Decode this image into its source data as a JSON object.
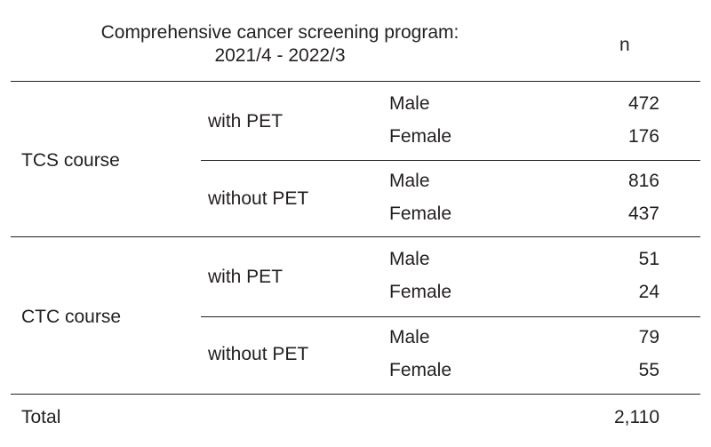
{
  "table": {
    "header": {
      "title_line1": "Comprehensive cancer screening program:",
      "title_line2": "2021/4 - 2022/3",
      "n_label": "n"
    },
    "courses": [
      {
        "name": "TCS course",
        "groups": [
          {
            "name": "with PET",
            "rows": [
              {
                "sex": "Male",
                "n": "472"
              },
              {
                "sex": "Female",
                "n": "176"
              }
            ]
          },
          {
            "name": "without PET",
            "rows": [
              {
                "sex": "Male",
                "n": "816"
              },
              {
                "sex": "Female",
                "n": "437"
              }
            ]
          }
        ]
      },
      {
        "name": "CTC course",
        "groups": [
          {
            "name": "with PET",
            "rows": [
              {
                "sex": "Male",
                "n": "51"
              },
              {
                "sex": "Female",
                "n": "24"
              }
            ]
          },
          {
            "name": "without PET",
            "rows": [
              {
                "sex": "Male",
                "n": "79"
              },
              {
                "sex": "Female",
                "n": "55"
              }
            ]
          }
        ]
      }
    ],
    "total": {
      "label": "Total",
      "n": "2,110"
    }
  }
}
